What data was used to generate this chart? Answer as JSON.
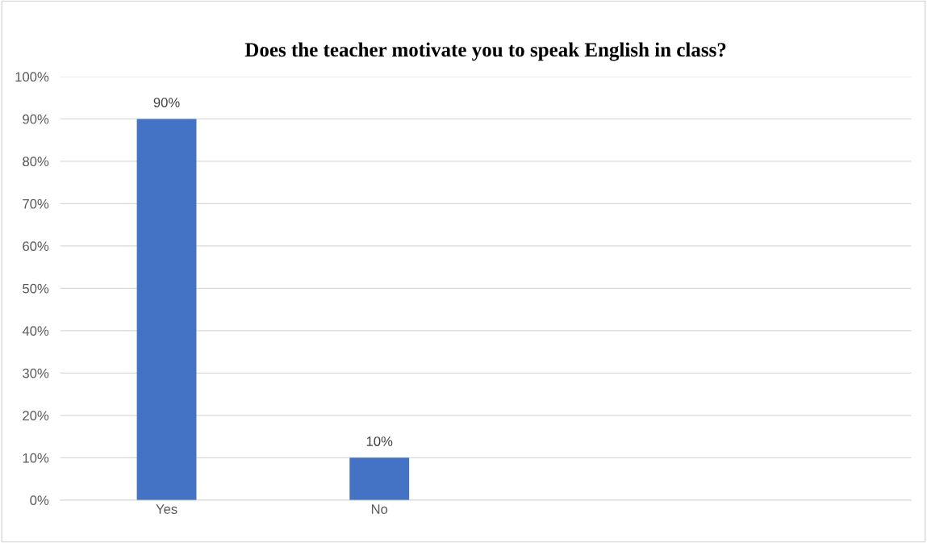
{
  "chart_data": {
    "type": "bar",
    "title": "Does the teacher motivate you to speak English in class?",
    "categories": [
      "Yes",
      "No",
      null,
      null
    ],
    "values": [
      90,
      10,
      null,
      null
    ],
    "value_labels": [
      "90%",
      "10%",
      null,
      null
    ],
    "color": "#4472c4",
    "ylim": [
      0,
      100
    ],
    "yticks": [
      {
        "value": 0,
        "label": "0%"
      },
      {
        "value": 10,
        "label": "10%"
      },
      {
        "value": 20,
        "label": "20%"
      },
      {
        "value": 30,
        "label": "30%"
      },
      {
        "value": 40,
        "label": "40%"
      },
      {
        "value": 50,
        "label": "50%"
      },
      {
        "value": 60,
        "label": "60%"
      },
      {
        "value": 70,
        "label": "70%"
      },
      {
        "value": 80,
        "label": "80%"
      },
      {
        "value": 90,
        "label": "90%"
      },
      {
        "value": 100,
        "label": "100%"
      }
    ],
    "grid": "y"
  }
}
